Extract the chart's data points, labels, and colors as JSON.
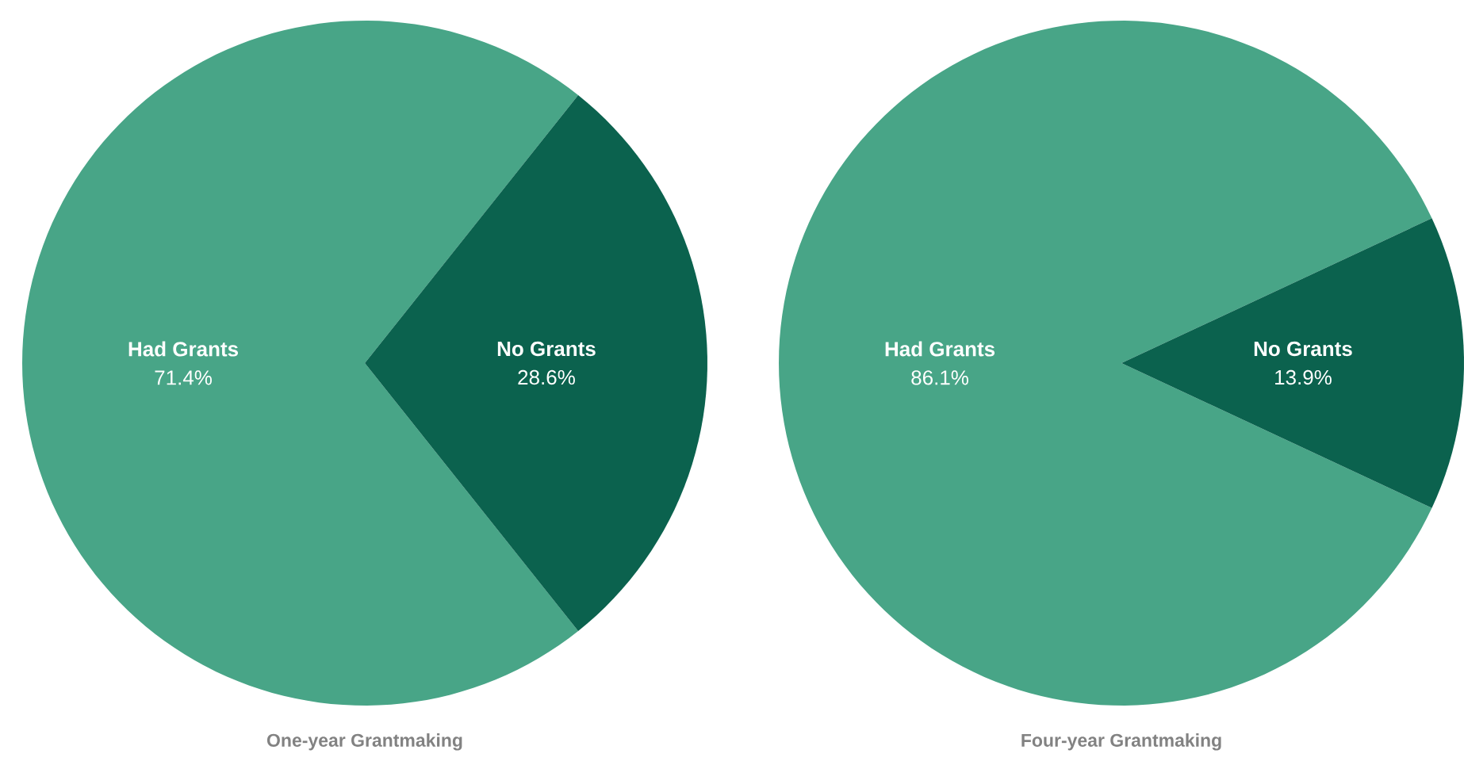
{
  "chart_data": [
    {
      "type": "pie",
      "title": "One-year Grantmaking",
      "categories": [
        "Had Grants",
        "No Grants"
      ],
      "values": [
        71.4,
        28.6
      ],
      "value_labels": [
        "71.4%",
        "28.6%"
      ],
      "colors": [
        "#48a587",
        "#0b624e"
      ]
    },
    {
      "type": "pie",
      "title": "Four-year Grantmaking",
      "categories": [
        "Had Grants",
        "No Grants"
      ],
      "values": [
        86.1,
        13.9
      ],
      "value_labels": [
        "86.1%",
        "13.9%"
      ],
      "colors": [
        "#48a587",
        "#0b624e"
      ]
    }
  ]
}
